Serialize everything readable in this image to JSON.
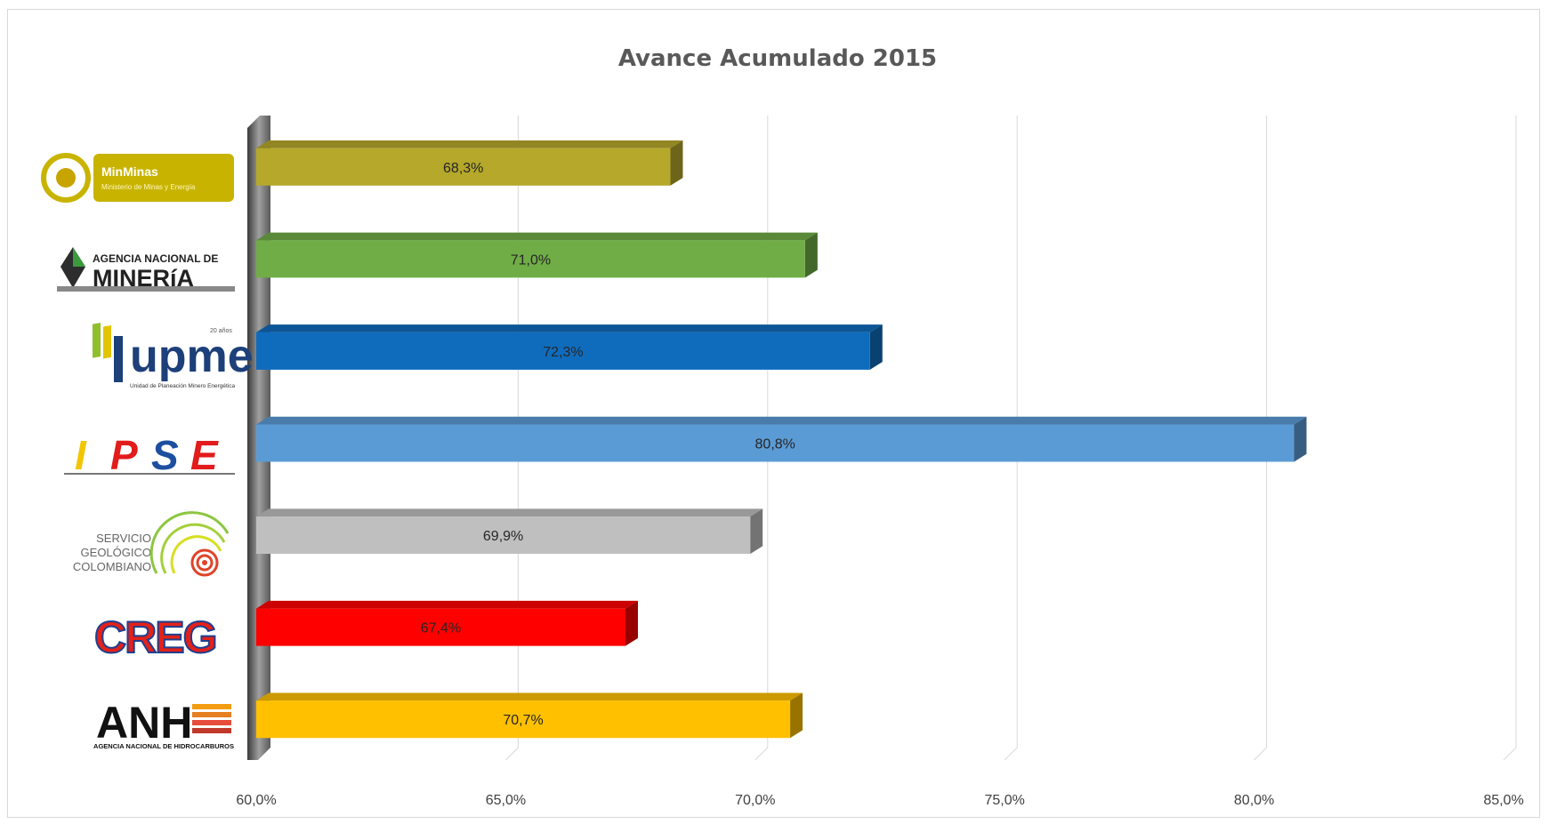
{
  "chart_data": {
    "type": "bar",
    "orientation": "horizontal",
    "title": "Avance Acumulado 2015",
    "categories": [
      "MinMinas",
      "Agencia Nacional de Minería",
      "UPME",
      "IPSE",
      "Servicio Geológico Colombiano",
      "CREG",
      "ANH"
    ],
    "values": [
      68.3,
      71.0,
      72.3,
      80.8,
      69.9,
      67.4,
      70.7
    ],
    "value_labels": [
      "68,3%",
      "71,0%",
      "72,3%",
      "80,8%",
      "69,9%",
      "67,4%",
      "70,7%"
    ],
    "colors": [
      "#b5a82a",
      "#70ad47",
      "#0f6cbd",
      "#5b9bd5",
      "#bfbfbf",
      "#ff0000",
      "#ffc000"
    ],
    "xlim": [
      60,
      85
    ],
    "x_ticks": [
      60,
      65,
      70,
      75,
      80,
      85
    ],
    "x_tick_labels": [
      "60,0%",
      "65,0%",
      "70,0%",
      "75,0%",
      "80,0%",
      "85,0%"
    ],
    "grid": true,
    "legend": "none"
  },
  "logos": {
    "minminas": {
      "name": "MinMinas",
      "subtitle": "Ministerio de Minas y Energía",
      "color": "#c8b400"
    },
    "anm": {
      "line1": "AGENCIA NACIONAL DE",
      "line2": "MINERíA"
    },
    "upme": {
      "name": "upme",
      "badge": "20 años",
      "subtitle": "Unidad de Planeación Minero Energética"
    },
    "ipse": {
      "letters": [
        "I",
        "P",
        "S",
        "E"
      ]
    },
    "sgc": {
      "line1": "SERVICIO",
      "line2": "GEOLÓGICO",
      "line3": "COLOMBIANO"
    },
    "creg": {
      "name": "CREG"
    },
    "anh": {
      "name": "ANH",
      "subtitle": "AGENCIA NACIONAL DE HIDROCARBUROS"
    }
  }
}
